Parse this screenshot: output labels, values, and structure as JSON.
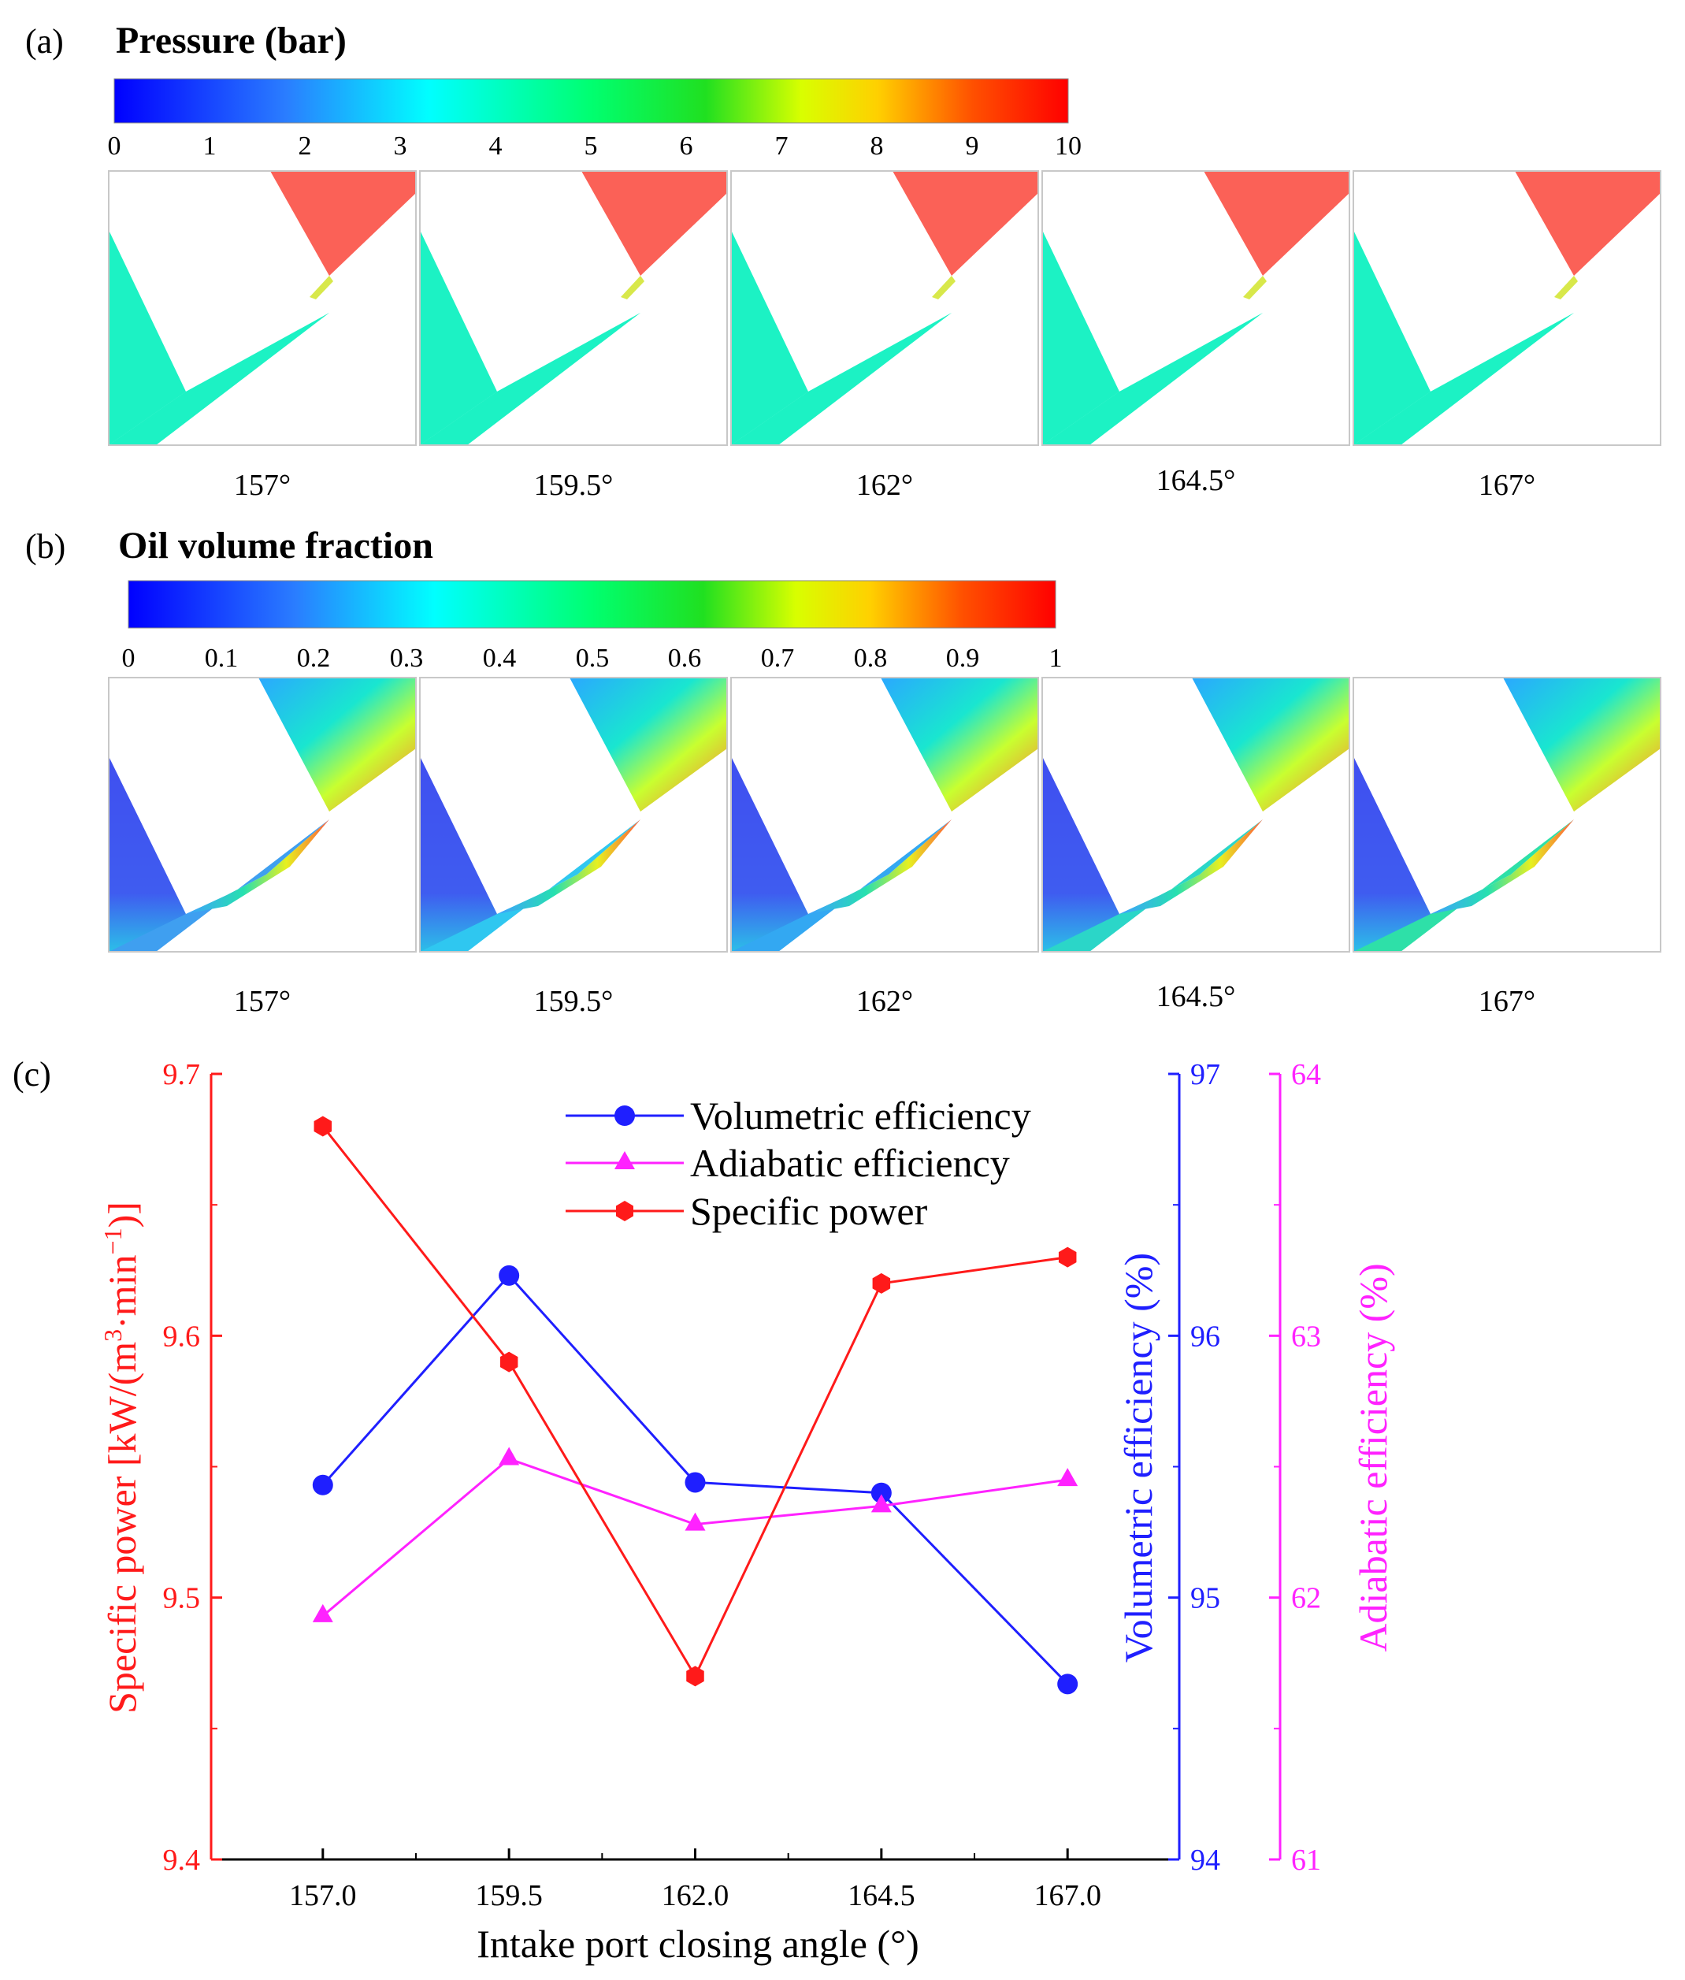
{
  "panel_a": {
    "label": "(a)",
    "title": "Pressure (bar)",
    "colorbar_ticks": [
      "0",
      "1",
      "2",
      "3",
      "4",
      "5",
      "6",
      "7",
      "8",
      "9",
      "10"
    ],
    "angles": [
      "157°",
      "159.5°",
      "162°",
      "164.5°",
      "167°"
    ]
  },
  "panel_b": {
    "label": "(b)",
    "title": "Oil volume fraction",
    "colorbar_ticks": [
      "0",
      "0.1",
      "0.2",
      "0.3",
      "0.4",
      "0.5",
      "0.6",
      "0.7",
      "0.8",
      "0.9",
      "1"
    ],
    "angles": [
      "157°",
      "159.5°",
      "162°",
      "164.5°",
      "167°"
    ]
  },
  "colors": {
    "specific_power": "#ff1a1a",
    "volumetric": "#1f1fff",
    "adiabatic": "#ff22ff",
    "pressure_low": "#1cf2c4",
    "pressure_high": "#fb6157",
    "oil_low": "#3f4ff0"
  },
  "chart_data": {
    "type": "line",
    "panel_label": "(c)",
    "xlabel": "Intake port closing angle  (°)",
    "x": [
      157.0,
      159.5,
      162.0,
      164.5,
      167.0
    ],
    "x_tick_labels": [
      "157.0",
      "159.5",
      "162.0",
      "164.5",
      "167.0"
    ],
    "xlim": [
      155.5,
      168.5
    ],
    "axes": {
      "left": {
        "label": "Specific power [kW/(m³·min⁻¹)]",
        "ylim": [
          9.4,
          9.7
        ],
        "ticks": [
          "9.4",
          "9.5",
          "9.6",
          "9.7"
        ]
      },
      "right_1": {
        "label": "Volumetric efficiency (%)",
        "ylim": [
          94,
          97
        ],
        "ticks": [
          "94",
          "95",
          "96",
          "97"
        ]
      },
      "right_2": {
        "label": "Adiabatic efficiency (%)",
        "ylim": [
          61,
          64
        ],
        "ticks": [
          "61",
          "62",
          "63",
          "64"
        ]
      }
    },
    "series": [
      {
        "name": "Volumetric efficiency",
        "axis": "right_1",
        "marker": "circle",
        "values": [
          95.43,
          96.23,
          95.44,
          95.4,
          94.67
        ]
      },
      {
        "name": "Adiabatic efficiency",
        "axis": "right_2",
        "marker": "triangle",
        "values": [
          61.93,
          62.53,
          62.28,
          62.35,
          62.45
        ]
      },
      {
        "name": "Specific power",
        "axis": "left",
        "marker": "hexagon",
        "values": [
          9.68,
          9.59,
          9.47,
          9.62,
          9.63
        ]
      }
    ],
    "legend_position": "top-center"
  }
}
